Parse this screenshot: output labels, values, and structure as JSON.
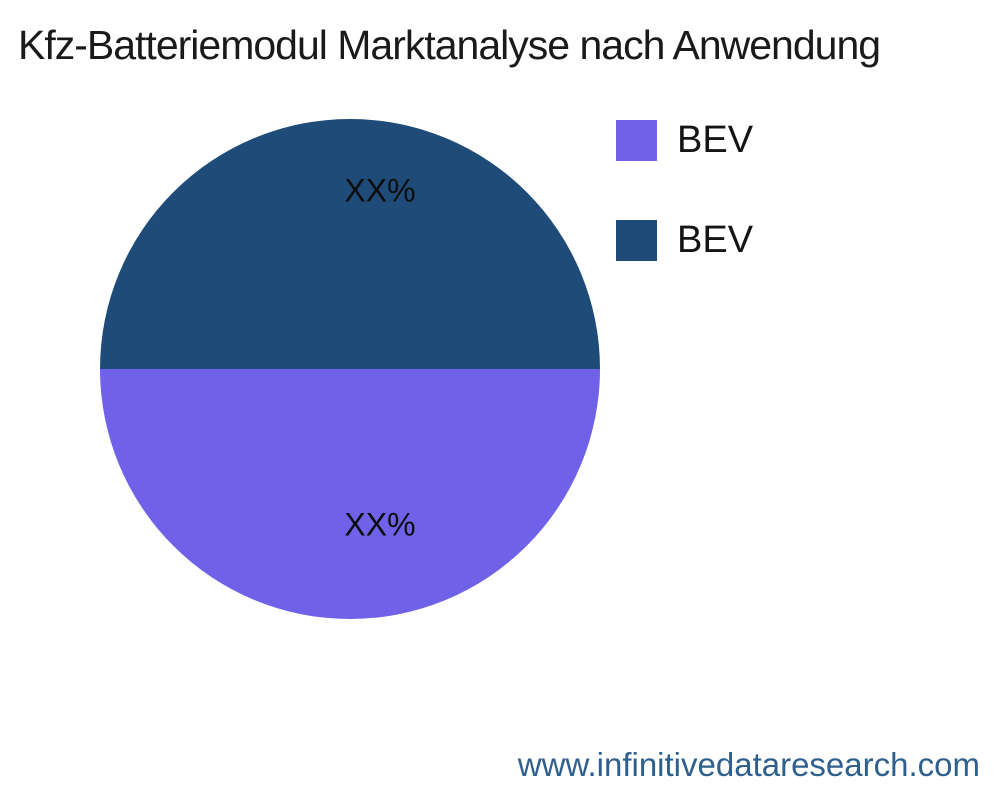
{
  "title": "Kfz-Batteriemodul Marktanalyse nach Anwendung",
  "footer": {
    "website": "www.infinitivedataresearch.com",
    "color": "#2F608D"
  },
  "colors": {
    "navy": "#1F4B78",
    "purple": "#6F62E8",
    "title_text": "#1A1A1A",
    "slice_label_text": "#0D0D0D",
    "background": "#FFFFFF"
  },
  "chart_data": {
    "type": "pie",
    "title": "Kfz-Batteriemodul Marktanalyse nach Anwendung",
    "slices": [
      {
        "label": "BEV",
        "color": "#6F62E8",
        "value": 50,
        "value_label": "XX%",
        "position": "bottom-half"
      },
      {
        "label": "BEV",
        "color": "#1F4B78",
        "value": 50,
        "value_label": "XX%",
        "position": "top-half"
      }
    ],
    "legend": {
      "position": "right",
      "items": [
        {
          "label": "BEV",
          "color": "#6F62E8"
        },
        {
          "label": "BEV",
          "color": "#1F4B78"
        }
      ]
    }
  }
}
